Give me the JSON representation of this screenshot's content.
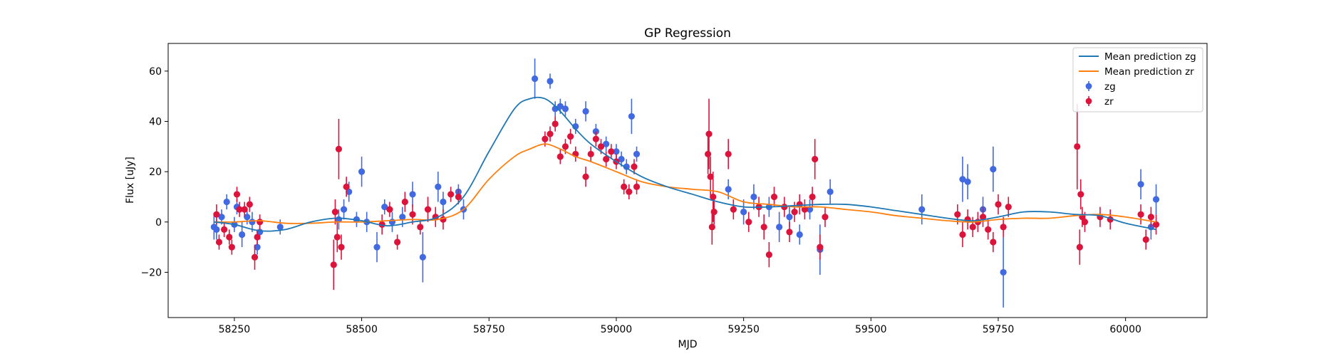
{
  "chart_data": {
    "type": "scatter",
    "title": "GP Regression",
    "xlabel": "MJD",
    "ylabel": "Flux [uJy]",
    "xlim": [
      58120,
      60160
    ],
    "ylim": [
      -38,
      71
    ],
    "xticks": [
      58250,
      58500,
      58750,
      59000,
      59250,
      59500,
      59750,
      60000
    ],
    "yticks": [
      -20,
      0,
      20,
      40,
      60
    ],
    "legend_position": "top-right",
    "legend": [
      {
        "label": "Mean prediction zg",
        "kind": "line",
        "color": "#1f77b4"
      },
      {
        "label": "Mean prediction zr",
        "kind": "line",
        "color": "#ff7f0e"
      },
      {
        "label": "zg",
        "kind": "errorbar",
        "color": "#4169e1"
      },
      {
        "label": "zr",
        "kind": "errorbar",
        "color": "#dc143c"
      }
    ],
    "mean_prediction_zg": {
      "x": [
        58210,
        58250,
        58300,
        58350,
        58400,
        58450,
        58500,
        58550,
        58600,
        58650,
        58700,
        58750,
        58800,
        58830,
        58860,
        58890,
        58920,
        58950,
        59000,
        59050,
        59100,
        59150,
        59200,
        59250,
        59300,
        59350,
        59400,
        59450,
        59500,
        59550,
        59600,
        59650,
        59700,
        59750,
        59800,
        59850,
        59900,
        59950,
        60000,
        60060
      ],
      "y": [
        0,
        -1,
        -3.5,
        -3,
        0,
        1.5,
        0.5,
        -1.5,
        0,
        2,
        10,
        28,
        45,
        49,
        49,
        44,
        37,
        31,
        24,
        18,
        14,
        11,
        8,
        6,
        6,
        6.5,
        7,
        7,
        6,
        4.5,
        3,
        1.5,
        0.5,
        2,
        4,
        4,
        3,
        2.5,
        -0.5,
        -3
      ]
    },
    "mean_prediction_zr": {
      "x": [
        58210,
        58250,
        58300,
        58350,
        58400,
        58450,
        58500,
        58550,
        58600,
        58650,
        58700,
        58750,
        58800,
        58830,
        58860,
        58890,
        58920,
        58950,
        59000,
        59050,
        59100,
        59150,
        59200,
        59250,
        59300,
        59350,
        59400,
        59450,
        59500,
        59550,
        59600,
        59650,
        59700,
        59750,
        59800,
        59850,
        59900,
        59950,
        60000,
        60060
      ],
      "y": [
        0,
        0,
        0.5,
        -0.5,
        -0.5,
        0,
        0,
        0.5,
        1,
        1,
        5,
        17,
        26,
        29,
        31,
        29,
        26,
        24,
        20,
        16,
        14,
        13,
        12,
        8,
        7,
        6,
        6,
        5,
        4,
        2.5,
        1.5,
        0.5,
        0,
        1,
        1.5,
        1.5,
        2.5,
        3,
        2,
        0
      ]
    },
    "zg": {
      "x": [
        58210,
        58215,
        58225,
        58235,
        58250,
        58255,
        58265,
        58275,
        58285,
        58295,
        58300,
        58340,
        58455,
        58465,
        58475,
        58490,
        58500,
        58510,
        58530,
        58545,
        58560,
        58580,
        58600,
        58620,
        58650,
        58660,
        58690,
        58700,
        58840,
        58870,
        58880,
        58890,
        58900,
        58920,
        58940,
        58960,
        58980,
        59000,
        59010,
        59020,
        59030,
        59040,
        59220,
        59250,
        59270,
        59300,
        59320,
        59340,
        59360,
        59380,
        59400,
        59420,
        59600,
        59680,
        59690,
        59720,
        59740,
        59760,
        60030,
        60050,
        60060
      ],
      "y": [
        -2,
        -3,
        2,
        8,
        -1,
        6,
        -5,
        2,
        0,
        -10,
        -4,
        -2,
        1,
        5,
        12,
        1,
        20,
        0,
        -10,
        6,
        0,
        2,
        11,
        -14,
        14,
        8,
        12,
        5,
        57,
        56,
        45,
        46,
        45,
        38,
        44,
        36,
        31,
        28,
        25,
        22,
        42,
        27,
        13,
        4,
        10,
        6,
        -2,
        2,
        -5,
        5,
        -11,
        12,
        5,
        17,
        16,
        5,
        21,
        -20,
        15,
        -2,
        9
      ],
      "err": [
        5,
        4,
        3,
        3,
        3,
        3,
        5,
        3,
        4,
        3,
        3,
        3,
        4,
        4,
        4,
        3,
        6,
        4,
        6,
        3,
        4,
        4,
        5,
        10,
        6,
        4,
        3,
        4,
        8,
        3,
        3,
        3,
        3,
        3,
        4,
        3,
        3,
        3,
        3,
        3,
        7,
        3,
        4,
        5,
        5,
        4,
        6,
        4,
        4,
        4,
        10,
        5,
        6,
        9,
        7,
        5,
        9,
        14,
        6,
        5,
        6
      ]
    },
    "zr": {
      "x": [
        58215,
        58220,
        58230,
        58240,
        58245,
        58255,
        58260,
        58270,
        58280,
        58290,
        58295,
        58300,
        58445,
        58448,
        58452,
        58455,
        58460,
        58470,
        58540,
        58555,
        58570,
        58585,
        58600,
        58615,
        58630,
        58645,
        58660,
        58675,
        58690,
        58860,
        58870,
        58880,
        58890,
        58900,
        58910,
        58920,
        58940,
        58950,
        58960,
        58970,
        58980,
        58990,
        59000,
        59015,
        59025,
        59035,
        59040,
        59180,
        59182,
        59185,
        59188,
        59190,
        59192,
        59220,
        59230,
        59260,
        59280,
        59290,
        59300,
        59310,
        59330,
        59340,
        59350,
        59360,
        59370,
        59385,
        59390,
        59400,
        59410,
        59670,
        59680,
        59690,
        59700,
        59710,
        59720,
        59730,
        59740,
        59750,
        59760,
        59770,
        59905,
        59910,
        59912,
        59915,
        59920,
        59950,
        59970,
        60030,
        60040,
        60050,
        60060
      ],
      "y": [
        3,
        -8,
        -3,
        -6,
        -10,
        11,
        5,
        5,
        7,
        -14,
        -6,
        0,
        -17,
        4,
        -6,
        29,
        -10,
        14,
        -1,
        5,
        -8,
        8,
        3,
        -2,
        5,
        2,
        1,
        11,
        10,
        33,
        35,
        39,
        26,
        30,
        34,
        27,
        18,
        27,
        33,
        30,
        25,
        28,
        24,
        14,
        12,
        22,
        14,
        27,
        35,
        18,
        -2,
        10,
        4,
        27,
        5,
        0,
        6,
        -2,
        -13,
        10,
        6,
        -4,
        4,
        7,
        5,
        10,
        25,
        -10,
        2,
        3,
        -5,
        1,
        -2,
        0,
        2,
        -3,
        -8,
        7,
        -2,
        6,
        30,
        -10,
        11,
        2,
        0,
        2,
        1,
        3,
        -7,
        2,
        -1
      ],
      "err": [
        4,
        3,
        3,
        3,
        3,
        3,
        3,
        3,
        3,
        5,
        3,
        3,
        10,
        5,
        6,
        12,
        5,
        4,
        4,
        3,
        3,
        4,
        4,
        3,
        5,
        4,
        4,
        3,
        3,
        3,
        3,
        3,
        3,
        3,
        3,
        3,
        4,
        3,
        3,
        3,
        3,
        3,
        3,
        3,
        3,
        3,
        3,
        8,
        14,
        8,
        7,
        10,
        5,
        6,
        4,
        4,
        4,
        5,
        5,
        4,
        4,
        4,
        4,
        4,
        4,
        4,
        8,
        5,
        4,
        4,
        5,
        4,
        4,
        4,
        4,
        4,
        4,
        4,
        4,
        4,
        17,
        7,
        6,
        4,
        4,
        4,
        4,
        4,
        4,
        4,
        4
      ]
    }
  }
}
